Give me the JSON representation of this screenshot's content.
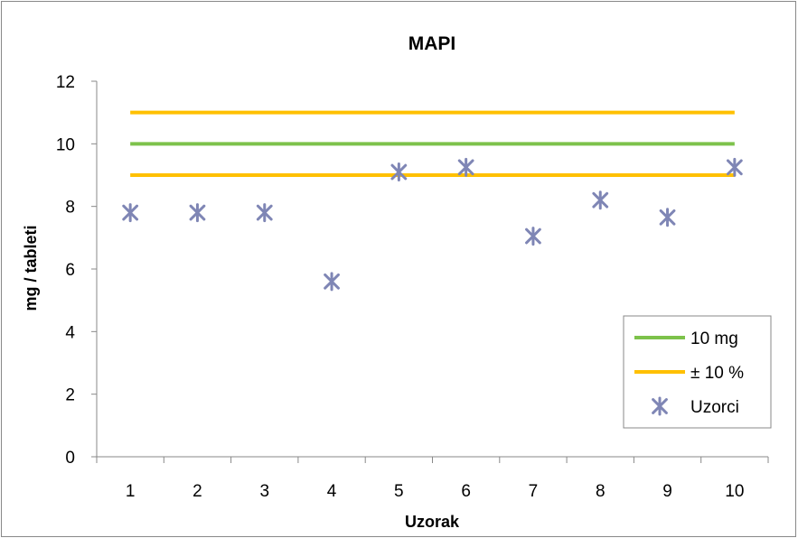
{
  "chart_data": {
    "type": "scatter",
    "title": "MAPI",
    "xlabel": "Uzorak",
    "ylabel": "mg / tableti",
    "categories": [
      "1",
      "2",
      "3",
      "4",
      "5",
      "6",
      "7",
      "8",
      "9",
      "10"
    ],
    "y_ticks": [
      "0",
      "2",
      "4",
      "6",
      "8",
      "10",
      "12"
    ],
    "ylim": [
      0,
      12
    ],
    "grid": false,
    "legend_position": "bottom-right",
    "series": [
      {
        "name": "10 mg",
        "type": "line",
        "color": "#7dc24b",
        "values": [
          10,
          10,
          10,
          10,
          10,
          10,
          10,
          10,
          10,
          10
        ]
      },
      {
        "name": "± 10 %",
        "type": "line",
        "color": "#ffc000",
        "values": [
          11,
          11,
          11,
          11,
          11,
          11,
          11,
          11,
          11,
          11
        ]
      },
      {
        "name": "",
        "type": "line",
        "color": "#ffc000",
        "values": [
          9,
          9,
          9,
          9,
          9,
          9,
          9,
          9,
          9,
          9
        ]
      },
      {
        "name": "Uzorci",
        "type": "scatter",
        "marker": "asterisk",
        "color": "#7f86b5",
        "values": [
          7.8,
          7.8,
          7.8,
          5.6,
          9.1,
          9.25,
          7.05,
          8.2,
          7.65,
          9.25
        ]
      }
    ],
    "legend": [
      {
        "label": "10 mg",
        "symbol": "line",
        "color": "#7dc24b"
      },
      {
        "label": "± 10 %",
        "symbol": "line",
        "color": "#ffc000"
      },
      {
        "label": "Uzorci",
        "symbol": "asterisk",
        "color": "#7f86b5"
      }
    ]
  }
}
